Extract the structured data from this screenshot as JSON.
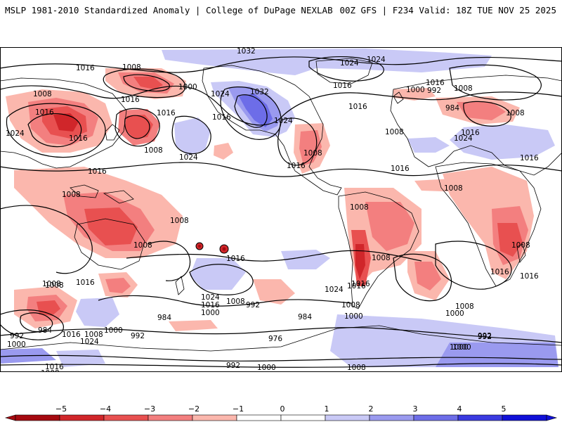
{
  "header": {
    "left": "MSLP 1981-2010 Standardized Anomaly | College of DuPage NEXLAB",
    "right": "00Z GFS | F234 Valid: 18Z TUE NOV 25 2025"
  },
  "colors": {
    "neg5": "#a50a10",
    "neg4": "#d0262a",
    "neg3": "#e85050",
    "neg2": "#f37f7f",
    "neg1": "#fbb7ad",
    "zero": "#ffffff",
    "pos1": "#c9c9f6",
    "pos2": "#9a9aef",
    "pos3": "#6d6de8",
    "pos4": "#3a3ae0",
    "pos5": "#1010d8",
    "contour": "#000000",
    "land": "#000000"
  },
  "colorbar": {
    "ticks": [
      "−5",
      "−4",
      "−3",
      "−2",
      "−1",
      "0",
      "1",
      "2",
      "3",
      "4",
      "5"
    ]
  },
  "isobars": [
    {
      "id": "iso-1032-arctic",
      "text": "1032"
    },
    {
      "id": "iso-1016-nw1",
      "text": "1016"
    },
    {
      "id": "iso-1008-aleut",
      "text": "1008"
    },
    {
      "id": "iso-1000-aleut",
      "text": "1000"
    },
    {
      "id": "iso-1008-w",
      "text": "1008"
    },
    {
      "id": "iso-1016-siberia1",
      "text": "1016"
    },
    {
      "id": "iso-1016-siberia2",
      "text": "1016"
    },
    {
      "id": "iso-1024-asia",
      "text": "1024"
    },
    {
      "id": "iso-1016-china",
      "text": "1016"
    },
    {
      "id": "iso-1016-pac1",
      "text": "1016"
    },
    {
      "id": "iso-1016-pac2",
      "text": "1016"
    },
    {
      "id": "iso-1008-pac",
      "text": "1008"
    },
    {
      "id": "iso-1024-npac",
      "text": "1024"
    },
    {
      "id": "iso-1024-canada",
      "text": "1024"
    },
    {
      "id": "iso-1032-canada",
      "text": "1032"
    },
    {
      "id": "iso-1016-canada",
      "text": "1016"
    },
    {
      "id": "iso-1024-us",
      "text": "1024"
    },
    {
      "id": "iso-1008-us",
      "text": "1008"
    },
    {
      "id": "iso-1016-mex",
      "text": "1016"
    },
    {
      "id": "iso-1024-green",
      "text": "1024"
    },
    {
      "id": "iso-1024-iceland",
      "text": "1024"
    },
    {
      "id": "iso-1016-atl1",
      "text": "1016"
    },
    {
      "id": "iso-1016-atl2",
      "text": "1016"
    },
    {
      "id": "iso-1008-atl",
      "text": "1008"
    },
    {
      "id": "iso-1016-natl",
      "text": "1016"
    },
    {
      "id": "iso-1000-euro1",
      "text": "1000"
    },
    {
      "id": "iso-992-euro",
      "text": "992"
    },
    {
      "id": "iso-1008-euro",
      "text": "1008"
    },
    {
      "id": "iso-1016-russia",
      "text": "1016"
    },
    {
      "id": "iso-984-russia",
      "text": "984"
    },
    {
      "id": "iso-1008-russia",
      "text": "1008"
    },
    {
      "id": "iso-1016-cas",
      "text": "1016"
    },
    {
      "id": "iso-1024-cas",
      "text": "1024"
    },
    {
      "id": "iso-1016-med",
      "text": "1016"
    },
    {
      "id": "iso-1008-africa",
      "text": "1008"
    },
    {
      "id": "iso-1016-eastafr",
      "text": "1016"
    },
    {
      "id": "iso-1008-safr",
      "text": "1008"
    },
    {
      "id": "iso-1016-safr",
      "text": "1016"
    },
    {
      "id": "iso-1008-amazon",
      "text": "1008"
    },
    {
      "id": "iso-1008-brazil",
      "text": "1008"
    },
    {
      "id": "iso-1016-andes",
      "text": "1016"
    },
    {
      "id": "iso-1024-satl",
      "text": "1024"
    },
    {
      "id": "iso-1008-satl",
      "text": "1008"
    },
    {
      "id": "iso-1000-satl",
      "text": "1000"
    },
    {
      "id": "iso-1000-sa",
      "text": "1000"
    },
    {
      "id": "iso-1008-sind",
      "text": "1008"
    },
    {
      "id": "iso-1000-sind",
      "text": "1000"
    },
    {
      "id": "iso-992-sind",
      "text": "992"
    },
    {
      "id": "iso-1000-so",
      "text": "1000"
    },
    {
      "id": "iso-1008-ant",
      "text": "1008"
    },
    {
      "id": "iso-1008-india",
      "text": "1008"
    },
    {
      "id": "iso-1016-india",
      "text": "1016"
    },
    {
      "id": "iso-1008-seasia",
      "text": "1008"
    },
    {
      "id": "iso-1008-indo",
      "text": "1008"
    },
    {
      "id": "iso-1016-aus",
      "text": "1016"
    },
    {
      "id": "iso-1008-aus",
      "text": "1008"
    },
    {
      "id": "iso-1016-spac",
      "text": "1016"
    },
    {
      "id": "iso-1024-spac",
      "text": "1024"
    },
    {
      "id": "iso-1016-spac2",
      "text": "1016"
    },
    {
      "id": "iso-1008-spac",
      "text": "1008"
    },
    {
      "id": "iso-992-spac",
      "text": "992"
    },
    {
      "id": "iso-1000-spac",
      "text": "1000"
    },
    {
      "id": "iso-984-spac",
      "text": "984"
    },
    {
      "id": "iso-984-spac2",
      "text": "984"
    },
    {
      "id": "iso-976-spac",
      "text": "976"
    },
    {
      "id": "iso-992-spac2",
      "text": "992"
    },
    {
      "id": "iso-1000-spac2",
      "text": "1000"
    },
    {
      "id": "iso-1008-spac2",
      "text": "1008"
    },
    {
      "id": "iso-992-so2",
      "text": "992"
    },
    {
      "id": "iso-1008-nz",
      "text": "1008"
    },
    {
      "id": "iso-984-nz",
      "text": "984"
    },
    {
      "id": "iso-992-nz",
      "text": "992"
    },
    {
      "id": "iso-1000-nz",
      "text": "1000"
    },
    {
      "id": "iso-1016-nz",
      "text": "1016"
    },
    {
      "id": "iso-1024-nz",
      "text": "1024"
    },
    {
      "id": "iso-1008-nz2",
      "text": "1008"
    },
    {
      "id": "iso-1000-nz2",
      "text": "1000"
    },
    {
      "id": "iso-992-nz2",
      "text": "992"
    },
    {
      "id": "iso-1016-ant2",
      "text": "1016"
    },
    {
      "id": "iso-1008-ant2",
      "text": "1008"
    }
  ]
}
